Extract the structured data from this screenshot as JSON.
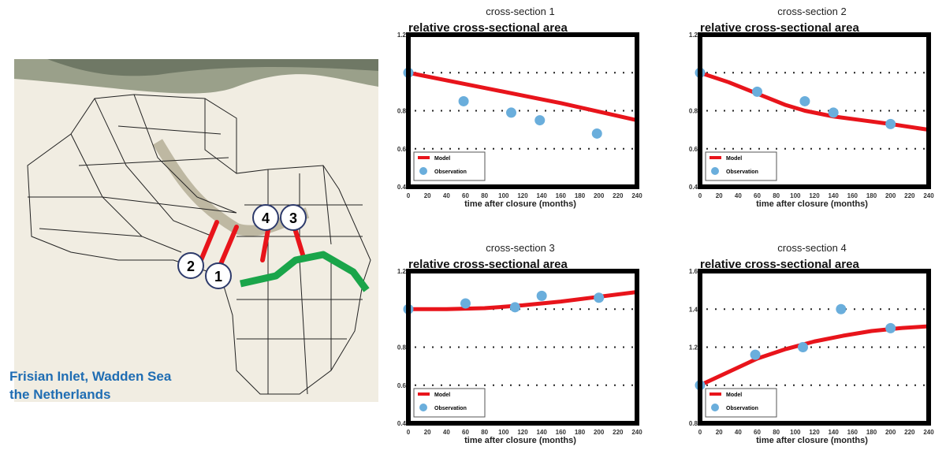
{
  "caption": {
    "line1": "Frisian Inlet, Wadden Sea",
    "line2": "the Netherlands"
  },
  "map": {
    "markers": [
      "1",
      "2",
      "3",
      "4"
    ],
    "transect_color": "#e8141b",
    "outline_color": "#1aa54a",
    "marker_border": "#2d3a6b"
  },
  "colors": {
    "model": "#e8141b",
    "observation": "#6aaedc"
  },
  "chart_data": [
    {
      "type": "line",
      "title": "cross-section 1",
      "ylabel": "relative cross-sectional area",
      "xlabel": "time after closure (months)",
      "xlim": [
        0,
        240
      ],
      "ylim": [
        0.4,
        1.2
      ],
      "x_ticks": [
        0,
        20,
        40,
        60,
        80,
        100,
        120,
        140,
        160,
        180,
        200,
        220,
        240
      ],
      "y_tick_labels": [
        {
          "v": 0.4,
          "t": "0.4"
        },
        {
          "v": 0.6,
          "t": "0.6"
        },
        {
          "v": 0.8,
          "t": "0.8"
        },
        {
          "v": 1.2,
          "t": "1.2"
        }
      ],
      "grid": [
        0.6,
        0.8,
        1.0
      ],
      "legend": {
        "position": "bottom-left",
        "model": "Model",
        "observation": "Observation"
      },
      "series": [
        {
          "name": "Model",
          "type": "line",
          "x": [
            0,
            40,
            80,
            120,
            160,
            200,
            240
          ],
          "y": [
            1.0,
            0.96,
            0.92,
            0.88,
            0.84,
            0.795,
            0.75
          ]
        },
        {
          "name": "Observation",
          "type": "scatter",
          "x": [
            0,
            58,
            108,
            138,
            198
          ],
          "y": [
            1.0,
            0.85,
            0.79,
            0.75,
            0.68
          ]
        }
      ]
    },
    {
      "type": "line",
      "title": "cross-section 2",
      "ylabel": "relative cross-sectional area",
      "xlabel": "time after closure (months)",
      "xlim": [
        0,
        240
      ],
      "ylim": [
        0.4,
        1.2
      ],
      "x_ticks": [
        0,
        20,
        40,
        60,
        80,
        100,
        120,
        140,
        160,
        180,
        200,
        220,
        240
      ],
      "y_tick_labels": [
        {
          "v": 0.4,
          "t": "0.4"
        },
        {
          "v": 0.6,
          "t": "0.6"
        },
        {
          "v": 0.8,
          "t": "0.8"
        },
        {
          "v": 1.2,
          "t": "1.2"
        }
      ],
      "grid": [
        0.6,
        0.8,
        1.0
      ],
      "legend": {
        "position": "bottom-left",
        "model": "Model",
        "observation": "Observation"
      },
      "series": [
        {
          "name": "Model",
          "type": "line",
          "x": [
            0,
            30,
            60,
            90,
            110,
            140,
            170,
            200,
            240
          ],
          "y": [
            1.0,
            0.95,
            0.89,
            0.83,
            0.8,
            0.77,
            0.75,
            0.73,
            0.7
          ]
        },
        {
          "name": "Observation",
          "type": "scatter",
          "x": [
            0,
            60,
            110,
            140,
            200
          ],
          "y": [
            1.0,
            0.9,
            0.85,
            0.79,
            0.73
          ]
        }
      ]
    },
    {
      "type": "line",
      "title": "cross-section 3",
      "ylabel": "relative cross-sectional area",
      "xlabel": "time after closure (months)",
      "xlim": [
        0,
        240
      ],
      "ylim": [
        0.4,
        1.2
      ],
      "x_ticks": [
        0,
        20,
        40,
        60,
        80,
        100,
        120,
        140,
        160,
        180,
        200,
        220,
        240
      ],
      "y_tick_labels": [
        {
          "v": 0.4,
          "t": "0.4"
        },
        {
          "v": 0.6,
          "t": "0.6"
        },
        {
          "v": 0.8,
          "t": "0.8"
        },
        {
          "v": 1.2,
          "t": "1.2"
        }
      ],
      "grid": [
        0.6,
        0.8,
        1.0
      ],
      "legend": {
        "position": "bottom-left",
        "model": "Model",
        "observation": "Observation"
      },
      "series": [
        {
          "name": "Model",
          "type": "line",
          "x": [
            0,
            40,
            80,
            120,
            160,
            200,
            240
          ],
          "y": [
            1.0,
            1.0,
            1.005,
            1.02,
            1.04,
            1.065,
            1.09
          ]
        },
        {
          "name": "Observation",
          "type": "scatter",
          "x": [
            0,
            60,
            112,
            140,
            200
          ],
          "y": [
            1.0,
            1.03,
            1.01,
            1.07,
            1.06
          ]
        }
      ]
    },
    {
      "type": "line",
      "title": "cross-section 4",
      "ylabel": "relative cross-sectional area",
      "xlabel": "time after closure (months)",
      "xlim": [
        0,
        240
      ],
      "ylim": [
        0.8,
        1.6
      ],
      "x_ticks": [
        0,
        20,
        40,
        60,
        80,
        100,
        120,
        140,
        160,
        180,
        200,
        220,
        240
      ],
      "y_tick_labels": [
        {
          "v": 0.8,
          "t": "0.8"
        },
        {
          "v": 1.2,
          "t": "1.2"
        },
        {
          "v": 1.4,
          "t": "1.4"
        },
        {
          "v": 1.6,
          "t": "1.6"
        }
      ],
      "grid": [
        1.0,
        1.2,
        1.4,
        1.6
      ],
      "legend": {
        "position": "bottom-left",
        "model": "Model",
        "observation": "Observation"
      },
      "series": [
        {
          "name": "Model",
          "type": "line",
          "x": [
            0,
            30,
            60,
            90,
            120,
            150,
            180,
            210,
            240
          ],
          "y": [
            1.0,
            1.07,
            1.14,
            1.19,
            1.23,
            1.26,
            1.285,
            1.3,
            1.31
          ]
        },
        {
          "name": "Observation",
          "type": "scatter",
          "x": [
            0,
            58,
            108,
            148,
            200
          ],
          "y": [
            1.0,
            1.16,
            1.2,
            1.4,
            1.3
          ]
        }
      ]
    }
  ]
}
